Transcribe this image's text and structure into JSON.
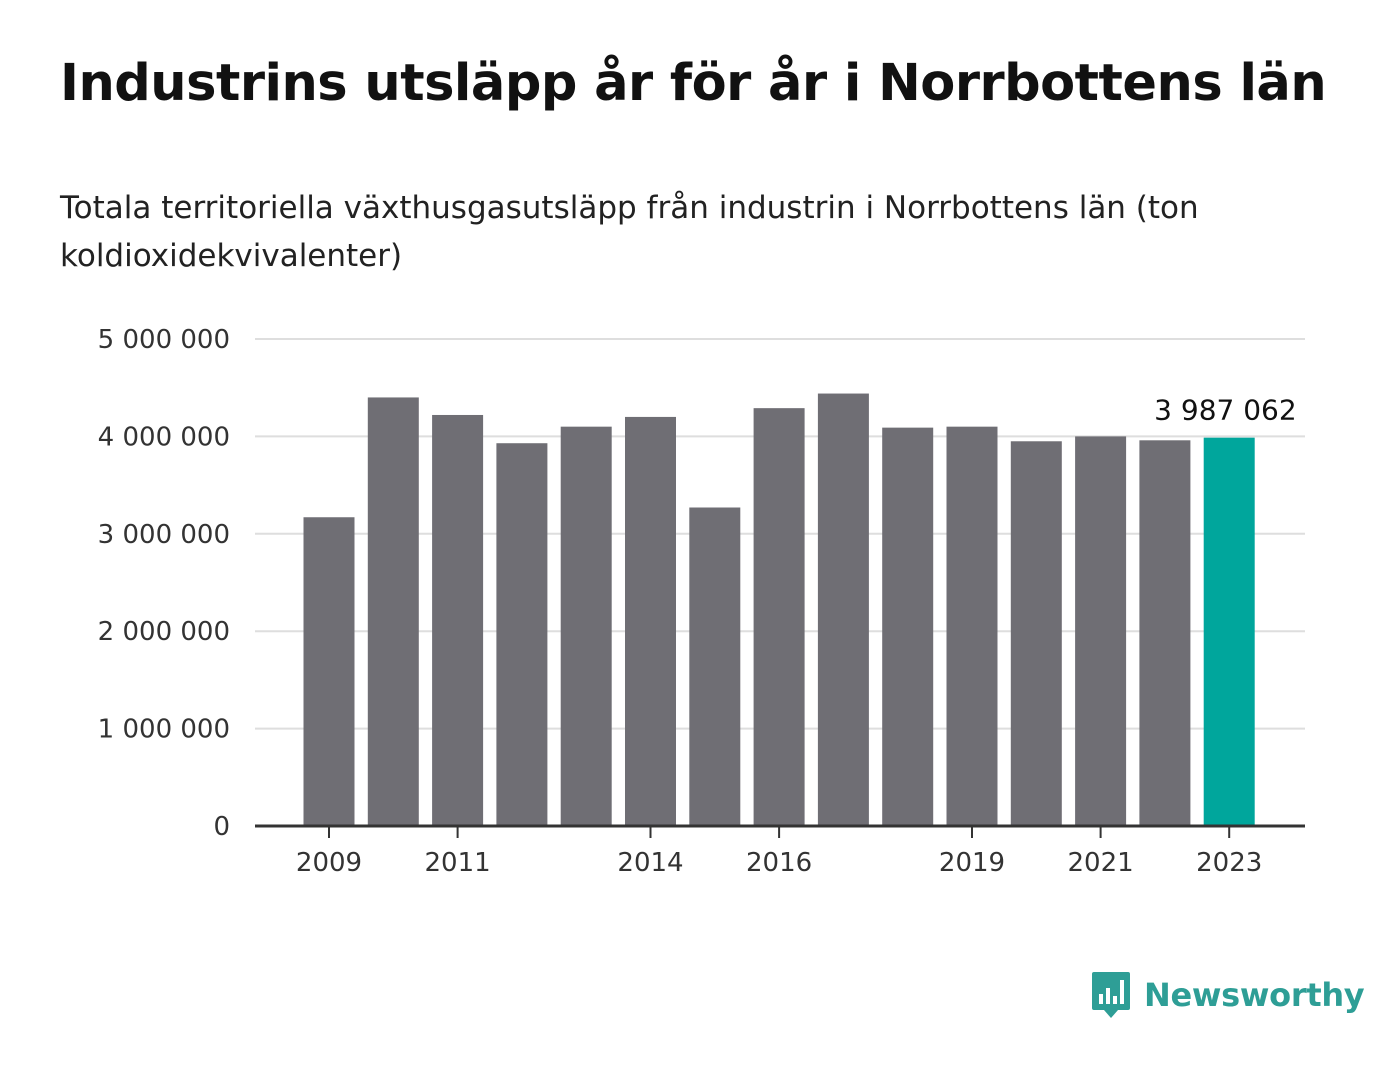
{
  "title": "Industrins utsläpp år för år i Norrbottens län",
  "subtitle": "Totala territoriella växthusgasutsläpp från industrin i Norrbottens län (ton koldioxidekvivalenter)",
  "brand": {
    "name": "Newsworthy",
    "color": "#2e9e96",
    "icon": "bar-chart-speech-bubble-icon"
  },
  "colors": {
    "bar": "#6f6e74",
    "highlight": "#00a69c",
    "grid": "#dedede",
    "axis": "#333333"
  },
  "chart_data": {
    "type": "bar",
    "x": [
      2009,
      2010,
      2011,
      2012,
      2013,
      2014,
      2015,
      2016,
      2017,
      2018,
      2019,
      2020,
      2021,
      2022,
      2023
    ],
    "values": [
      3170000,
      4400000,
      4220000,
      3930000,
      4100000,
      4200000,
      3270000,
      4290000,
      4440000,
      4090000,
      4100000,
      3950000,
      4000000,
      3960000,
      3987062
    ],
    "highlight_index": 14,
    "highlight_label": "3 987 062",
    "x_ticks": [
      "2009",
      "2011",
      "2014",
      "2016",
      "2019",
      "2021",
      "2023"
    ],
    "y_ticks": [
      0,
      1000000,
      2000000,
      3000000,
      4000000,
      5000000
    ],
    "y_tick_labels": [
      "0",
      "1 000 000",
      "2 000 000",
      "3 000 000",
      "4 000 000",
      "5 000 000"
    ],
    "ylim": [
      0,
      5000000
    ],
    "grid": true,
    "legend": "none"
  }
}
